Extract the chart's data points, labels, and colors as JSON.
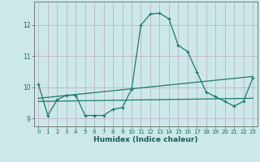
{
  "title": "",
  "xlabel": "Humidex (Indice chaleur)",
  "ylabel": "",
  "bg_color": "#cce8e8",
  "line_color": "#1a7a6e",
  "grid_color": "#c0a8c0",
  "xlim": [
    -0.5,
    23.5
  ],
  "ylim": [
    8.75,
    12.75
  ],
  "xticks": [
    0,
    1,
    2,
    3,
    4,
    5,
    6,
    7,
    8,
    9,
    10,
    11,
    12,
    13,
    14,
    15,
    16,
    17,
    18,
    19,
    20,
    21,
    22,
    23
  ],
  "yticks": [
    9,
    10,
    11,
    12
  ],
  "curve1_x": [
    0,
    1,
    2,
    3,
    4,
    5,
    6,
    7,
    8,
    9,
    10,
    11,
    12,
    13,
    14,
    15,
    16,
    17,
    18,
    19,
    20,
    21,
    22,
    23
  ],
  "curve1_y": [
    10.1,
    9.1,
    9.6,
    9.75,
    9.75,
    9.1,
    9.1,
    9.1,
    9.3,
    9.35,
    9.95,
    12.0,
    12.35,
    12.38,
    12.2,
    11.35,
    11.15,
    10.5,
    9.85,
    9.7,
    9.55,
    9.4,
    9.55,
    10.3
  ],
  "curve2_x": [
    0,
    23
  ],
  "curve2_y": [
    9.55,
    9.65
  ],
  "curve3_x": [
    0,
    23
  ],
  "curve3_y": [
    9.65,
    10.35
  ]
}
